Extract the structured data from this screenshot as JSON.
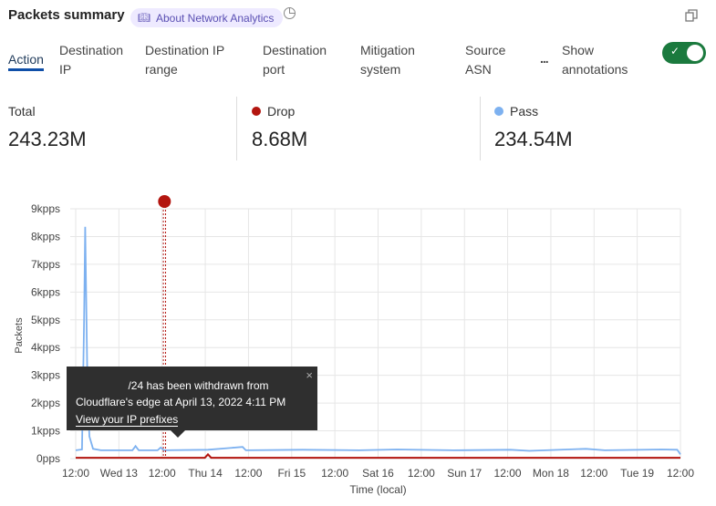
{
  "header": {
    "title": "Packets summary",
    "about_label": "About Network Analytics",
    "history_icon": "history-icon",
    "copy_icon": "copy-icon"
  },
  "tabs": [
    {
      "label": "Action",
      "active": true
    },
    {
      "label": "Destination IP"
    },
    {
      "label": "Destination IP range"
    },
    {
      "label": "Destination port"
    },
    {
      "label": "Mitigation system"
    },
    {
      "label": "Source ASN"
    }
  ],
  "more_label": "...",
  "annotations_toggle": {
    "label": "Show annotations",
    "on": true,
    "color": "#1b7a3e"
  },
  "stats": [
    {
      "label": "Total",
      "value": "243.23M"
    },
    {
      "label": "Drop",
      "value": "8.68M",
      "color": "#b3150f"
    },
    {
      "label": "Pass",
      "value": "234.54M",
      "color": "#7db1f0"
    }
  ],
  "tooltip": {
    "line1": "/24 has been withdrawn from",
    "line2": "Cloudflare's edge at April 13, 2022 4:11 PM",
    "link": "View your IP prefixes",
    "close": "×"
  },
  "chart_data": {
    "type": "line",
    "xlabel": "Time (local)",
    "ylabel": "Packets",
    "xlim": [
      "2022-04-12 12:00",
      "2022-04-20 12:00"
    ],
    "ylim": [
      0,
      9
    ],
    "y_ticks": [
      "0pps",
      "1kpps",
      "2kpps",
      "3kpps",
      "4kpps",
      "5kpps",
      "6kpps",
      "7kpps",
      "8kpps",
      "9kpps"
    ],
    "x_ticks": [
      "12:00",
      "Wed 13",
      "12:00",
      "Thu 14",
      "12:00",
      "Fri 15",
      "12:00",
      "Sat 16",
      "12:00",
      "Sun 17",
      "12:00",
      "Mon 18",
      "12:00",
      "Tue 19",
      "12:00"
    ],
    "grid": true,
    "annotation": {
      "time": "2022-04-13 16:11",
      "color": "#b3150f"
    },
    "series": [
      {
        "name": "Pass",
        "color": "#7db1f0",
        "unit": "kpps",
        "points": [
          [
            "2022-04-12 12:00",
            0.3
          ],
          [
            "2022-04-12 14:00",
            0.33
          ],
          [
            "2022-04-12 14:40",
            5.0
          ],
          [
            "2022-04-12 15:00",
            8.35
          ],
          [
            "2022-04-12 15:40",
            3.0
          ],
          [
            "2022-04-12 16:20",
            0.8
          ],
          [
            "2022-04-12 17:30",
            0.35
          ],
          [
            "2022-04-12 20:00",
            0.3
          ],
          [
            "2022-04-13 06:00",
            0.3
          ],
          [
            "2022-04-13 07:00",
            0.45
          ],
          [
            "2022-04-13 08:00",
            0.3
          ],
          [
            "2022-04-13 14:00",
            0.3
          ],
          [
            "2022-04-13 15:00",
            0.4
          ],
          [
            "2022-04-13 16:00",
            0.3
          ],
          [
            "2022-04-14 06:00",
            0.32
          ],
          [
            "2022-04-14 17:00",
            0.42
          ],
          [
            "2022-04-14 18:00",
            0.3
          ],
          [
            "2022-04-15 12:00",
            0.32
          ],
          [
            "2022-04-16 06:00",
            0.3
          ],
          [
            "2022-04-16 18:00",
            0.33
          ],
          [
            "2022-04-17 12:00",
            0.3
          ],
          [
            "2022-04-18 06:00",
            0.32
          ],
          [
            "2022-04-18 12:00",
            0.28
          ],
          [
            "2022-04-19 06:00",
            0.35
          ],
          [
            "2022-04-19 12:00",
            0.3
          ],
          [
            "2022-04-20 06:00",
            0.33
          ],
          [
            "2022-04-20 11:00",
            0.32
          ],
          [
            "2022-04-20 12:00",
            0.15
          ]
        ]
      },
      {
        "name": "Drop",
        "color": "#b3150f",
        "unit": "kpps",
        "points": [
          [
            "2022-04-12 12:00",
            0.03
          ],
          [
            "2022-04-14 05:00",
            0.03
          ],
          [
            "2022-04-14 06:00",
            0.15
          ],
          [
            "2022-04-14 07:00",
            0.03
          ],
          [
            "2022-04-20 12:00",
            0.03
          ]
        ]
      }
    ]
  }
}
